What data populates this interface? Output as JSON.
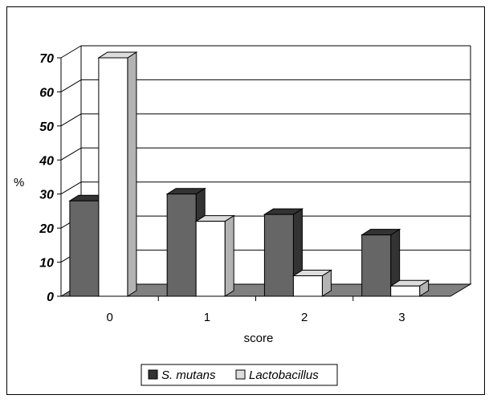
{
  "chart_data": {
    "type": "bar",
    "categories": [
      "0",
      "1",
      "2",
      "3"
    ],
    "series": [
      {
        "name": "S. mutans",
        "values": [
          28,
          30,
          24,
          18
        ],
        "color": "#666666",
        "side_color": "#333333",
        "top_color": "#333333"
      },
      {
        "name": "Lactobacillus",
        "values": [
          70,
          22,
          6,
          3
        ],
        "color": "#ffffff",
        "side_color": "#b3b3b3",
        "top_color": "#dddddd"
      }
    ],
    "xlabel": "score",
    "ylabel": "%",
    "ylim": [
      0,
      70
    ],
    "yticks": [
      "0",
      "10",
      "20",
      "30",
      "40",
      "50",
      "60",
      "70"
    ],
    "grid": true,
    "floor_color": "#808080",
    "legend_position": "bottom-center"
  }
}
